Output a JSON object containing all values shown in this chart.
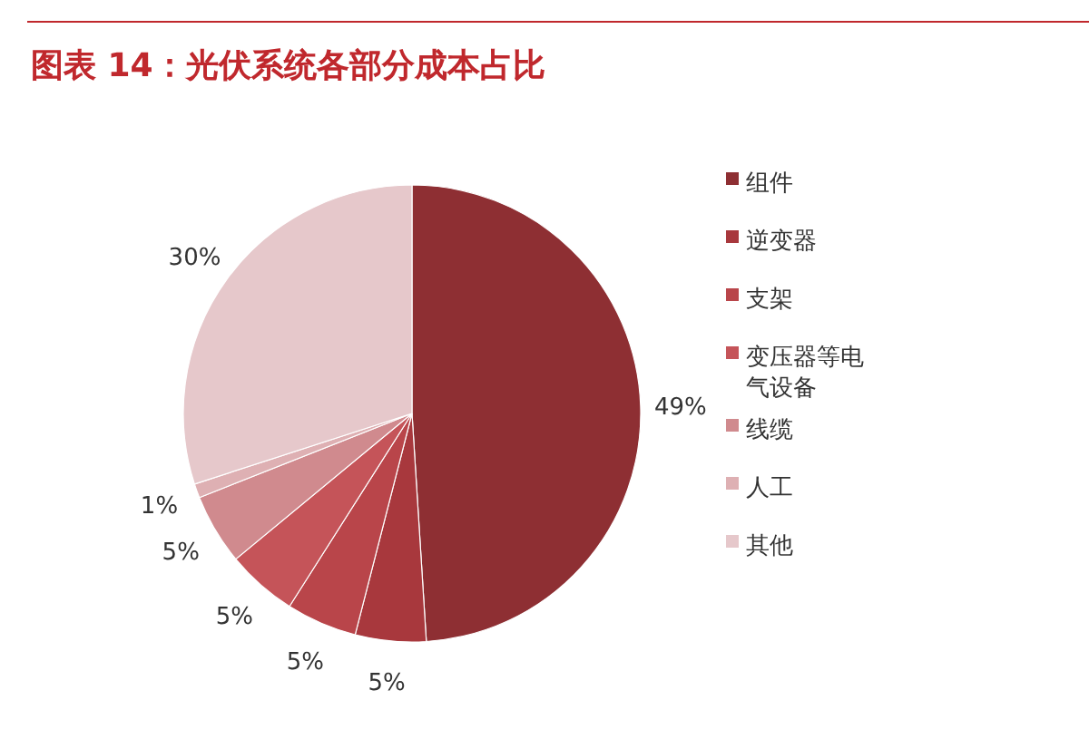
{
  "chart_data": {
    "type": "pie",
    "title": "图表 14：光伏系统各部分成本占比",
    "categories": [
      "组件",
      "逆变器",
      "支架",
      "变压器等电气设备",
      "线缆",
      "人工",
      "其他"
    ],
    "values": [
      49,
      5,
      5,
      5,
      5,
      1,
      30
    ],
    "value_labels": [
      "49%",
      "5%",
      "5%",
      "5%",
      "5%",
      "1%",
      "30%"
    ],
    "colors": [
      "#8e2f33",
      "#a8383d",
      "#b9454a",
      "#c55459",
      "#d08a8e",
      "#deb0b3",
      "#e6c8cb"
    ],
    "legend": "right"
  }
}
